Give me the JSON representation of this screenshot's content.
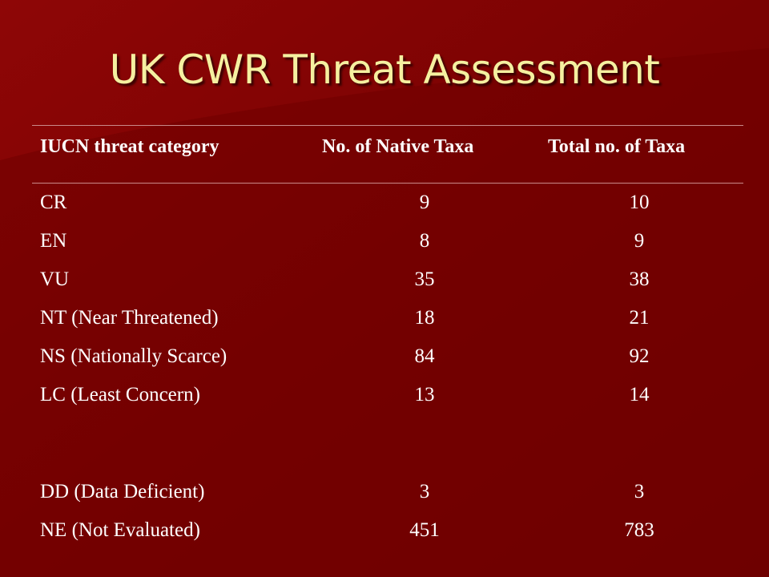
{
  "slide": {
    "title": "UK CWR Threat Assessment"
  },
  "table": {
    "headers": [
      "IUCN threat category",
      "No. of Native Taxa",
      "Total no. of Taxa"
    ],
    "rows": [
      [
        "CR",
        "9",
        "10"
      ],
      [
        "EN",
        "8",
        "9"
      ],
      [
        "VU",
        "35",
        "38"
      ],
      [
        "NT (Near Threatened)",
        "18",
        "21"
      ],
      [
        "NS (Nationally Scarce)",
        "84",
        "92"
      ],
      [
        "LC (Least Concern)",
        "13",
        "14"
      ],
      [
        "DD (Data Deficient)",
        "3",
        "3"
      ],
      [
        "NE (Not Evaluated)",
        "451",
        "783"
      ]
    ]
  },
  "colors": {
    "background": "#7a0000",
    "title": "#f5f0a0",
    "text": "#ffffff"
  }
}
